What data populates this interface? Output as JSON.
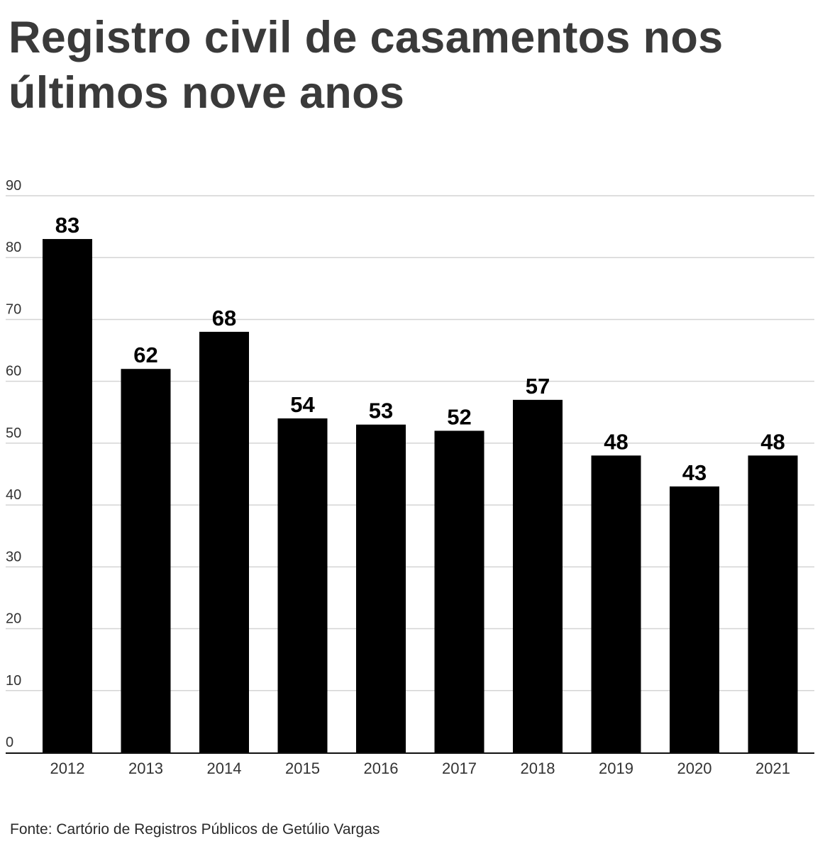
{
  "title": "Registro civil de casamentos nos últimos nove anos",
  "source": "Fonte: Cartório de Registros Públicos de Getúlio Vargas",
  "colors": {
    "bar": "#000000",
    "grid": "#d4d4d4",
    "title": "#3a3a3a",
    "axis_text": "#333333"
  },
  "chart_data": {
    "type": "bar",
    "title": "Registro civil de casamentos nos últimos nove anos",
    "xlabel": "",
    "ylabel": "",
    "categories": [
      "2012",
      "2013",
      "2014",
      "2015",
      "2016",
      "2017",
      "2018",
      "2019",
      "2020",
      "2021"
    ],
    "values": [
      83,
      62,
      68,
      54,
      53,
      52,
      57,
      48,
      43,
      48
    ],
    "ylim": [
      0,
      90
    ],
    "yticks": [
      0,
      10,
      20,
      30,
      40,
      50,
      60,
      70,
      80,
      90
    ],
    "grid": true,
    "legend": "none",
    "data_labels": true
  }
}
